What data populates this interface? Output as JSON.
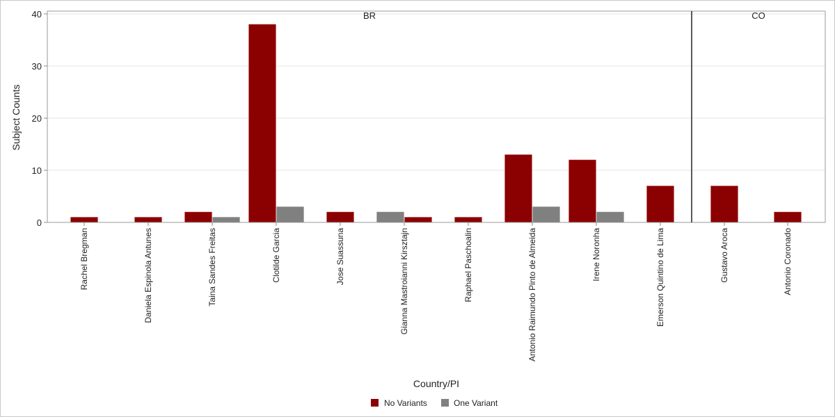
{
  "chart_data": {
    "type": "bar",
    "xlabel": "Country/PI",
    "ylabel": "Subject Counts",
    "ylim": [
      0,
      40
    ],
    "yticks": [
      0,
      10,
      20,
      30,
      40
    ],
    "grid": true,
    "legend_position": "bottom",
    "series": [
      {
        "name": "No Variants",
        "color": "#8b0000"
      },
      {
        "name": "One Variant",
        "color": "#808080"
      }
    ],
    "panels": [
      {
        "label": "BR",
        "categories": [
          {
            "name": "Rachel Bregman",
            "bars": [
              {
                "series": "No Variants",
                "value": 1
              }
            ]
          },
          {
            "name": "Daniela Espinola Antunes",
            "bars": [
              {
                "series": "No Variants",
                "value": 1
              }
            ]
          },
          {
            "name": "Taina Sandes Freitas",
            "bars": [
              {
                "series": "No Variants",
                "value": 2
              },
              {
                "series": "One Variant",
                "value": 1
              }
            ]
          },
          {
            "name": "Clotilde Garcia",
            "bars": [
              {
                "series": "No Variants",
                "value": 38
              },
              {
                "series": "One Variant",
                "value": 3
              }
            ]
          },
          {
            "name": "Jose Suassuna",
            "bars": [
              {
                "series": "No Variants",
                "value": 2
              }
            ]
          },
          {
            "name": "Gianna Mastroianni Kirsztajn",
            "bars": [
              {
                "series": "One Variant",
                "value": 2
              },
              {
                "series": "No Variants",
                "value": 1
              }
            ]
          },
          {
            "name": "Raphael Paschoalin",
            "bars": [
              {
                "series": "No Variants",
                "value": 1
              }
            ]
          },
          {
            "name": "Antonio Raimundo Pinto de Almeida",
            "bars": [
              {
                "series": "No Variants",
                "value": 13
              },
              {
                "series": "One Variant",
                "value": 3
              }
            ]
          },
          {
            "name": "Irene Noronha",
            "bars": [
              {
                "series": "No Variants",
                "value": 12
              },
              {
                "series": "One Variant",
                "value": 2
              }
            ]
          },
          {
            "name": "Emerson Quintino de Lima",
            "bars": [
              {
                "series": "No Variants",
                "value": 7
              }
            ]
          }
        ]
      },
      {
        "label": "CO",
        "categories": [
          {
            "name": "Gustavo Aroca",
            "bars": [
              {
                "series": "No Variants",
                "value": 7
              }
            ]
          },
          {
            "name": "Antonio Coronado",
            "bars": [
              {
                "series": "No Variants",
                "value": 2
              }
            ]
          }
        ]
      }
    ]
  }
}
